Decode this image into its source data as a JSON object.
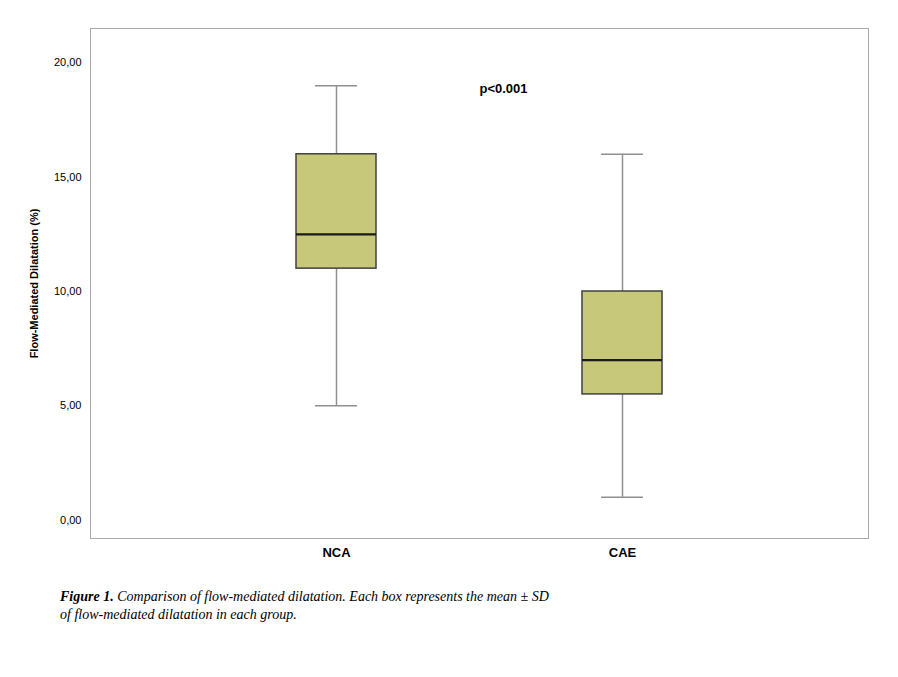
{
  "chart_data": {
    "type": "box",
    "categories": [
      "NCA",
      "CAE"
    ],
    "boxes": [
      {
        "whisker_low": 5.0,
        "q1": 11.0,
        "median": 12.5,
        "q3": 16.0,
        "whisker_high": 19.0
      },
      {
        "whisker_low": 1.0,
        "q1": 5.5,
        "median": 7.0,
        "q3": 10.0,
        "whisker_high": 16.0
      }
    ],
    "color": "#C8C87A",
    "ylabel": "Flow-Mediated Dilatation (%)",
    "ylim": [
      -0.8,
      21.5
    ],
    "yticks": [
      {
        "value": 0,
        "label": "0,00"
      },
      {
        "value": 5,
        "label": "5,00"
      },
      {
        "value": 10,
        "label": "10,00"
      },
      {
        "value": 15,
        "label": "15,00"
      },
      {
        "value": 20,
        "label": "20,00"
      }
    ],
    "annotations": [
      {
        "text": "p<0.001"
      }
    ],
    "caption": {
      "label": "Figure 1.",
      "text": "Comparison of flow-mediated dilatation. Each box represents the mean ± SD\nof flow-mediated dilatation in each group."
    },
    "grid": false
  }
}
